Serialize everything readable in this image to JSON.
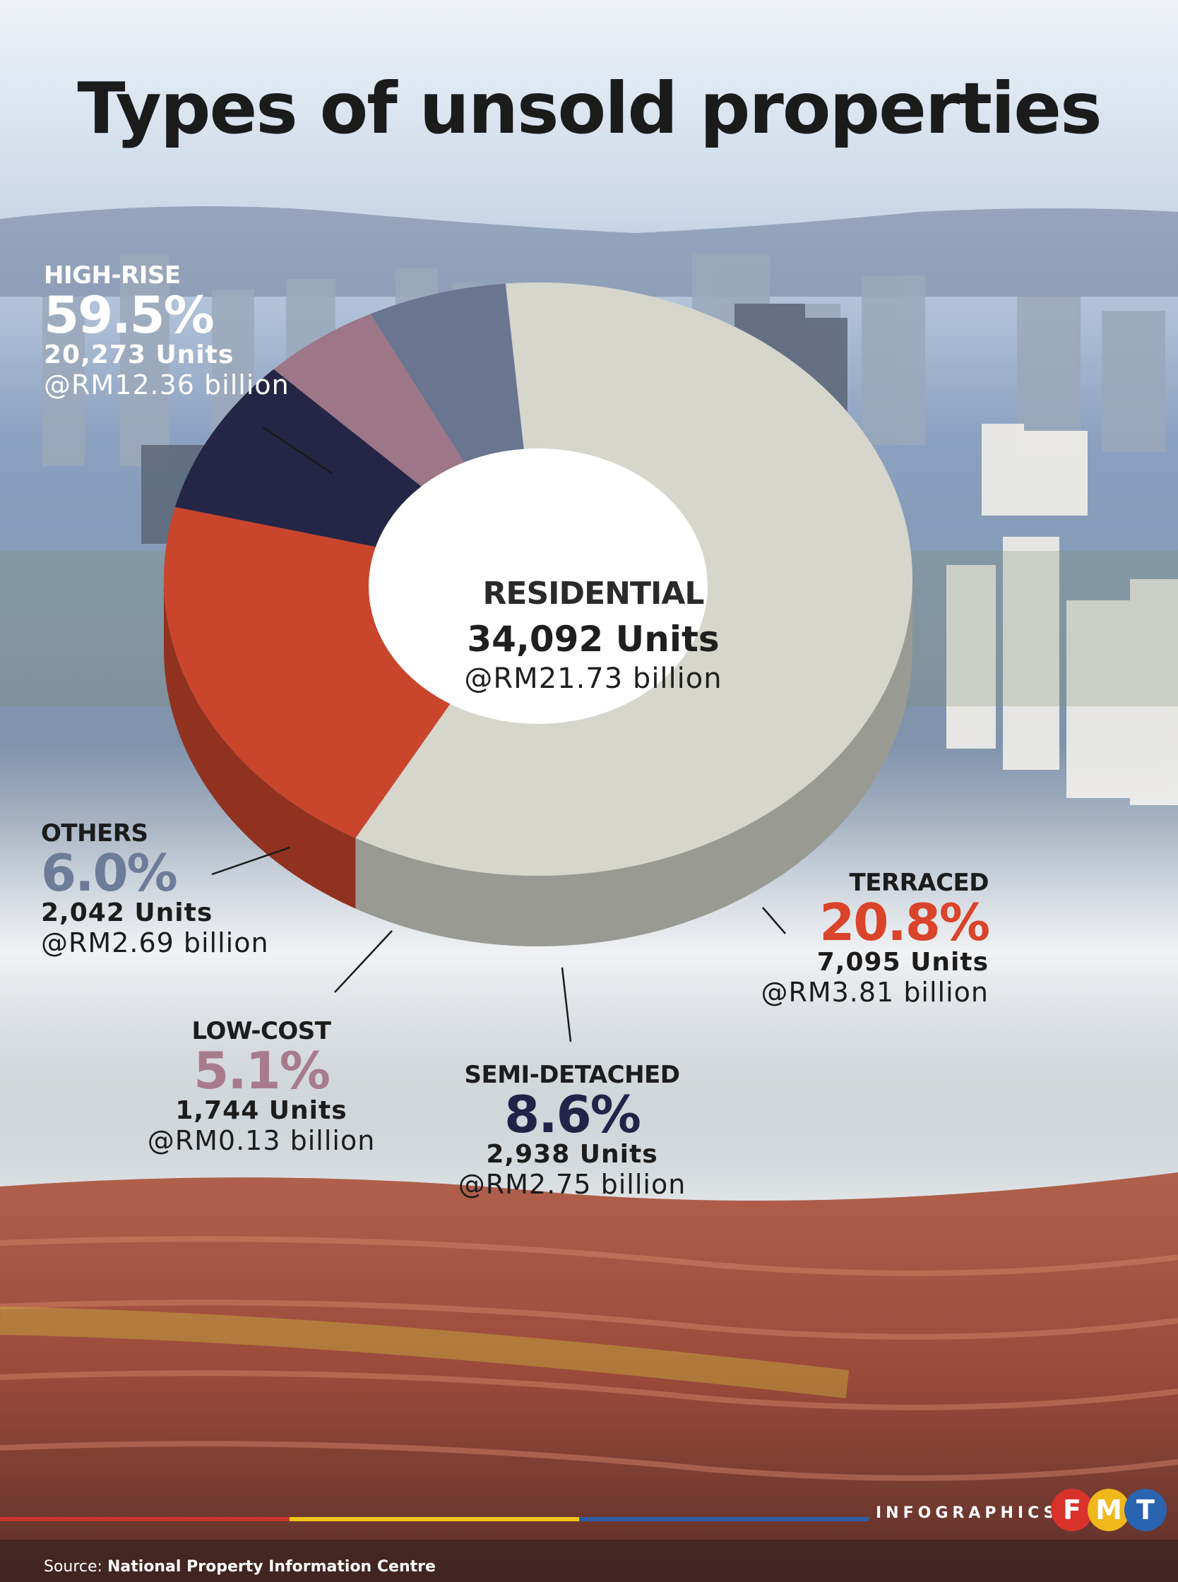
{
  "title": "Types of unsold properties",
  "colors": {
    "highrise": "#d6d6cd",
    "terraced": "#c9452c",
    "semidetached": "#252545",
    "lowcost": "#9d7687",
    "others": "#6a7590",
    "pct_highrise": "#ffffff",
    "pct_terraced": "#d9442b",
    "pct_semidetached": "#23234a",
    "pct_lowcost": "#a77b8c",
    "pct_others": "#6d7c98",
    "bar_red": "#c8362a",
    "bar_yellow": "#f0c419",
    "bar_blue": "#2d5fa8",
    "logo_red": "#d8322b",
    "logo_yellow": "#f0b81a",
    "logo_blue": "#2a63b0"
  },
  "chart_data": {
    "type": "pie",
    "title": "Types of unsold properties",
    "center": {
      "category": "RESIDENTIAL",
      "units": "34,092 Units",
      "value": "@RM21.73 billion"
    },
    "slices": [
      {
        "name": "HIGH-RISE",
        "percent": 59.5,
        "percent_label": "59.5%",
        "units": "20,273 Units",
        "value": "@RM12.36 billion"
      },
      {
        "name": "TERRACED",
        "percent": 20.8,
        "percent_label": "20.8%",
        "units": "7,095 Units",
        "value": "@RM3.81 billion"
      },
      {
        "name": "SEMI-DETACHED",
        "percent": 8.6,
        "percent_label": "8.6%",
        "units": "2,938 Units",
        "value": "@RM2.75 billion"
      },
      {
        "name": "LOW-COST",
        "percent": 5.1,
        "percent_label": "5.1%",
        "units": "1,744 Units",
        "value": "@RM0.13 billion"
      },
      {
        "name": "OTHERS",
        "percent": 6.0,
        "percent_label": "6.0%",
        "units": "2,042 Units",
        "value": "@RM2.69 billion"
      }
    ]
  },
  "footer": {
    "infographics": "INFOGRAPHICS",
    "logo_letters": [
      "F",
      "M",
      "T"
    ],
    "source_prefix": "Source: ",
    "source_name": "National Property Information Centre"
  }
}
